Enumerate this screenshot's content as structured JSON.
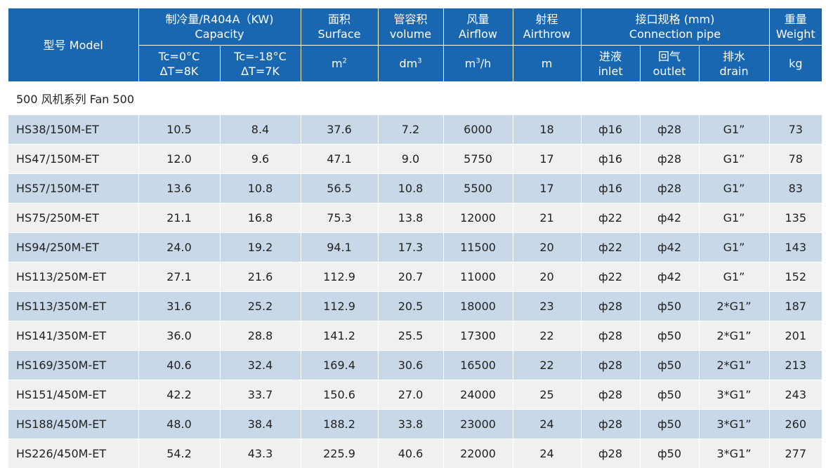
{
  "header": {
    "model": "型号 Model",
    "capacity": {
      "cn": "制冷量/R404A（KW)",
      "en": "Capacity"
    },
    "tc0": {
      "line1": "Tc=0°C",
      "line2": "ΔT=8K"
    },
    "tc18": {
      "line1": "Tc=-18°C",
      "line2": "ΔT=7K"
    },
    "surface": {
      "cn": "面积",
      "en": "Surface",
      "unit": "m",
      "unit_sup": "2"
    },
    "volume": {
      "cn": "管容积",
      "en": "volume",
      "unit": "dm",
      "unit_sup": "3"
    },
    "airflow": {
      "cn": "风量",
      "en": "Airflow",
      "unit_pre": "m",
      "unit_sup": "3",
      "unit_post": "/h"
    },
    "airthrow": {
      "cn": "射程",
      "en": "Airthrow",
      "unit": "m"
    },
    "connection": {
      "cn": "接口规格 (mm)",
      "en": "Connection pipe"
    },
    "inlet": {
      "cn": "进液",
      "en": "inlet"
    },
    "outlet": {
      "cn": "回气",
      "en": "outlet"
    },
    "drain": {
      "cn": "排水",
      "en": "drain"
    },
    "weight": {
      "cn": "重量",
      "en": "Weight",
      "unit": "kg"
    }
  },
  "series_label": "500 风机系列  Fan 500",
  "rows": [
    {
      "model": "HS38/150M-ET",
      "tc0": "10.5",
      "tc18": "8.4",
      "surface": "37.6",
      "volume": "7.2",
      "airflow": "6000",
      "airthrow": "18",
      "inlet": "ф16",
      "outlet": "ф28",
      "drain": "G1”",
      "weight": "73"
    },
    {
      "model": "HS47/150M-ET",
      "tc0": "12.0",
      "tc18": "9.6",
      "surface": "47.1",
      "volume": "9.0",
      "airflow": "5750",
      "airthrow": "17",
      "inlet": "ф16",
      "outlet": "ф28",
      "drain": "G1”",
      "weight": "78"
    },
    {
      "model": "HS57/150M-ET",
      "tc0": "13.6",
      "tc18": "10.8",
      "surface": "56.5",
      "volume": "10.8",
      "airflow": "5500",
      "airthrow": "17",
      "inlet": "ф16",
      "outlet": "ф28",
      "drain": "G1”",
      "weight": "83"
    },
    {
      "model": "HS75/250M-ET",
      "tc0": "21.1",
      "tc18": "16.8",
      "surface": "75.3",
      "volume": "13.8",
      "airflow": "12000",
      "airthrow": "21",
      "inlet": "ф22",
      "outlet": "ф42",
      "drain": "G1”",
      "weight": "135"
    },
    {
      "model": "HS94/250M-ET",
      "tc0": "24.0",
      "tc18": "19.2",
      "surface": "94.1",
      "volume": "17.3",
      "airflow": "11500",
      "airthrow": "20",
      "inlet": "ф22",
      "outlet": "ф42",
      "drain": "G1”",
      "weight": "143"
    },
    {
      "model": "HS113/250M-ET",
      "tc0": "27.1",
      "tc18": "21.6",
      "surface": "112.9",
      "volume": "20.7",
      "airflow": "11000",
      "airthrow": "20",
      "inlet": "ф22",
      "outlet": "ф42",
      "drain": "G1”",
      "weight": "152"
    },
    {
      "model": "HS113/350M-ET",
      "tc0": "31.6",
      "tc18": "25.2",
      "surface": "112.9",
      "volume": "20.5",
      "airflow": "18000",
      "airthrow": "23",
      "inlet": "ф28",
      "outlet": "ф50",
      "drain": "2*G1”",
      "weight": "187"
    },
    {
      "model": "HS141/350M-ET",
      "tc0": "36.0",
      "tc18": "28.8",
      "surface": "141.2",
      "volume": "25.5",
      "airflow": "17300",
      "airthrow": "22",
      "inlet": "ф28",
      "outlet": "ф50",
      "drain": "2*G1”",
      "weight": "201"
    },
    {
      "model": "HS169/350M-ET",
      "tc0": "40.6",
      "tc18": "32.4",
      "surface": "169.4",
      "volume": "30.6",
      "airflow": "16500",
      "airthrow": "22",
      "inlet": "ф28",
      "outlet": "ф50",
      "drain": "2*G1”",
      "weight": "213"
    },
    {
      "model": "HS151/450M-ET",
      "tc0": "42.2",
      "tc18": "33.7",
      "surface": "150.6",
      "volume": "27.0",
      "airflow": "24000",
      "airthrow": "25",
      "inlet": "ф28",
      "outlet": "ф50",
      "drain": "3*G1”",
      "weight": "243"
    },
    {
      "model": "HS188/450M-ET",
      "tc0": "48.0",
      "tc18": "38.4",
      "surface": "188.2",
      "volume": "33.8",
      "airflow": "23000",
      "airthrow": "24",
      "inlet": "ф28",
      "outlet": "ф50",
      "drain": "3*G1”",
      "weight": "260"
    },
    {
      "model": "HS226/450M-ET",
      "tc0": "54.2",
      "tc18": "43.3",
      "surface": "225.9",
      "volume": "40.6",
      "airflow": "22000",
      "airthrow": "24",
      "inlet": "ф28",
      "outlet": "ф50",
      "drain": "3*G1”",
      "weight": "277"
    }
  ],
  "colors": {
    "header_bg": "#1967b1",
    "row_blue": "#c8d8e8",
    "row_gray": "#f0f0f1"
  }
}
